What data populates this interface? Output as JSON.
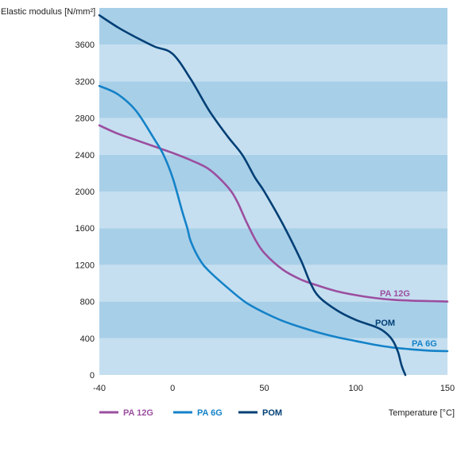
{
  "chart_data": {
    "type": "line",
    "ylabel": "Elastic modulus [N/mm²]",
    "xlabel": "Temperature [°C]",
    "xlim": [
      -40,
      150
    ],
    "ylim": [
      0,
      4000
    ],
    "x_ticks": [
      "-40",
      "0",
      "50",
      "100",
      "150"
    ],
    "x_tick_values": [
      -40,
      0,
      50,
      100,
      150
    ],
    "y_ticks": [
      "0",
      "400",
      "800",
      "1200",
      "1600",
      "2000",
      "2400",
      "2800",
      "3200",
      "3600"
    ],
    "y_tick_values": [
      0,
      400,
      800,
      1200,
      1600,
      2000,
      2400,
      2800,
      3200,
      3600
    ],
    "band_colors": [
      "#c5dff0",
      "#a8cfe8"
    ],
    "series": [
      {
        "name": "PA 12G",
        "color": "#9b4f9f",
        "x": [
          -40,
          -30,
          -20,
          -10,
          0,
          10,
          20,
          30,
          35,
          40,
          45,
          50,
          60,
          70,
          80,
          90,
          100,
          110,
          120,
          130,
          140,
          150
        ],
        "y": [
          2720,
          2630,
          2560,
          2490,
          2420,
          2340,
          2240,
          2050,
          1900,
          1680,
          1480,
          1330,
          1150,
          1040,
          970,
          910,
          870,
          840,
          820,
          810,
          805,
          800
        ]
      },
      {
        "name": "PA 6G",
        "color": "#1482c8",
        "x": [
          -40,
          -30,
          -20,
          -10,
          -5,
          0,
          5,
          8,
          10,
          15,
          20,
          30,
          40,
          50,
          60,
          70,
          80,
          90,
          100,
          110,
          120,
          130,
          140,
          150
        ],
        "y": [
          3150,
          3060,
          2880,
          2570,
          2400,
          2150,
          1800,
          1600,
          1450,
          1250,
          1130,
          950,
          790,
          680,
          590,
          520,
          460,
          410,
          370,
          330,
          300,
          280,
          265,
          260
        ]
      },
      {
        "name": "POM",
        "color": "#003f75",
        "x": [
          -40,
          -30,
          -20,
          -10,
          0,
          10,
          20,
          30,
          38,
          45,
          50,
          60,
          70,
          75,
          80,
          90,
          100,
          110,
          115,
          120,
          123,
          125,
          127
        ],
        "y": [
          3920,
          3790,
          3680,
          3580,
          3500,
          3220,
          2880,
          2600,
          2400,
          2150,
          2000,
          1650,
          1250,
          1010,
          850,
          700,
          600,
          530,
          480,
          380,
          250,
          100,
          0
        ]
      }
    ],
    "series_labels": [
      {
        "series": "PA 12G",
        "text": "PA 12G"
      },
      {
        "series": "POM",
        "text": "POM"
      },
      {
        "series": "PA 6G",
        "text": "PA 6G"
      }
    ],
    "legend": {
      "position": "bottom-left",
      "items": [
        {
          "label": "PA 12G",
          "color": "#9b4f9f"
        },
        {
          "label": "PA 6G",
          "color": "#1482c8"
        },
        {
          "label": "POM",
          "color": "#003f75"
        }
      ]
    }
  }
}
